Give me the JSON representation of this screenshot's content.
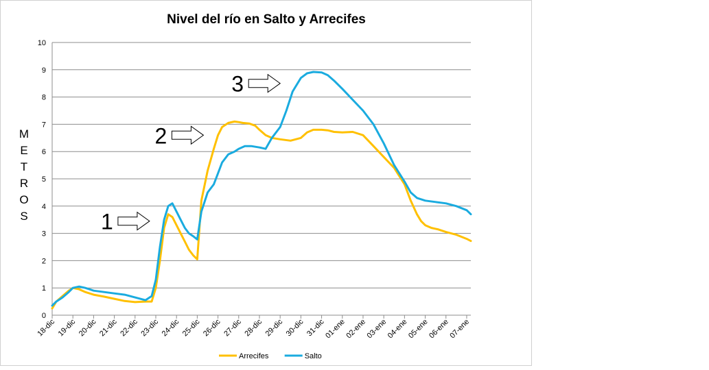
{
  "chart_data": {
    "type": "line",
    "title": "Nivel del río en Salto y Arrecifes",
    "ylabel": "METROS",
    "xlabel": "",
    "ylim": [
      0,
      10
    ],
    "yticks": [
      0,
      1,
      2,
      3,
      4,
      5,
      6,
      7,
      8,
      9,
      10
    ],
    "xlim": [
      0,
      20.2
    ],
    "categories": [
      "18-dic",
      "19-dic",
      "20-dic",
      "21-dic",
      "22-dic",
      "23-dic",
      "24-dic",
      "25-dic",
      "26-dic",
      "27-dic",
      "28-dic",
      "29-dic",
      "30-dic",
      "31-dic",
      "01-ene",
      "02-ene",
      "03-ene",
      "04-ene",
      "05-ene",
      "06-ene",
      "07-ene"
    ],
    "grid": true,
    "legend_position": "bottom",
    "series": [
      {
        "name": "Arrecifes",
        "color": "#ffc000",
        "x": [
          0,
          0.2,
          0.5,
          0.8,
          1.0,
          1.3,
          1.6,
          2.0,
          2.5,
          3.0,
          3.5,
          4.0,
          4.5,
          4.8,
          5.0,
          5.2,
          5.4,
          5.6,
          5.8,
          6.0,
          6.2,
          6.4,
          6.6,
          6.8,
          7.0,
          7.2,
          7.5,
          7.8,
          8.0,
          8.2,
          8.5,
          8.8,
          9.0,
          9.2,
          9.5,
          9.8,
          10.0,
          10.3,
          10.6,
          11.0,
          11.5,
          12.0,
          12.3,
          12.6,
          13.0,
          13.3,
          13.6,
          14.0,
          14.5,
          15.0,
          15.5,
          16.0,
          16.5,
          17.0,
          17.3,
          17.6,
          17.8,
          18.0,
          18.3,
          18.6,
          19.0,
          19.5,
          20.0,
          20.2
        ],
        "y": [
          0.25,
          0.5,
          0.7,
          0.9,
          1.0,
          0.95,
          0.85,
          0.75,
          0.68,
          0.6,
          0.52,
          0.48,
          0.5,
          0.5,
          1.0,
          2.0,
          3.2,
          3.7,
          3.6,
          3.3,
          3.0,
          2.7,
          2.4,
          2.2,
          2.05,
          4.2,
          5.3,
          6.1,
          6.6,
          6.9,
          7.05,
          7.1,
          7.08,
          7.05,
          7.03,
          6.95,
          6.8,
          6.6,
          6.5,
          6.45,
          6.4,
          6.5,
          6.7,
          6.8,
          6.8,
          6.78,
          6.72,
          6.7,
          6.72,
          6.6,
          6.2,
          5.8,
          5.4,
          4.8,
          4.2,
          3.7,
          3.45,
          3.3,
          3.2,
          3.15,
          3.05,
          2.95,
          2.8,
          2.72
        ]
      },
      {
        "name": "Salto",
        "color": "#1aabdf",
        "x": [
          0,
          0.2,
          0.5,
          0.8,
          1.0,
          1.3,
          1.6,
          2.0,
          2.5,
          3.0,
          3.5,
          4.0,
          4.5,
          4.8,
          5.0,
          5.2,
          5.4,
          5.6,
          5.8,
          6.0,
          6.2,
          6.4,
          6.6,
          6.8,
          7.0,
          7.2,
          7.5,
          7.8,
          8.0,
          8.2,
          8.5,
          8.8,
          9.0,
          9.3,
          9.6,
          10.0,
          10.3,
          10.6,
          11.0,
          11.3,
          11.6,
          12.0,
          12.3,
          12.6,
          13.0,
          13.3,
          13.6,
          14.0,
          14.5,
          15.0,
          15.5,
          16.0,
          16.5,
          17.0,
          17.3,
          17.6,
          18.0,
          18.5,
          19.0,
          19.5,
          20.0,
          20.2
        ],
        "y": [
          0.35,
          0.5,
          0.65,
          0.85,
          1.0,
          1.05,
          1.0,
          0.9,
          0.85,
          0.8,
          0.75,
          0.65,
          0.55,
          0.7,
          1.3,
          2.5,
          3.5,
          4.0,
          4.1,
          3.8,
          3.5,
          3.2,
          3.0,
          2.9,
          2.78,
          3.8,
          4.5,
          4.8,
          5.2,
          5.6,
          5.9,
          6.0,
          6.1,
          6.2,
          6.2,
          6.15,
          6.1,
          6.5,
          6.9,
          7.5,
          8.2,
          8.7,
          8.87,
          8.92,
          8.9,
          8.8,
          8.6,
          8.3,
          7.9,
          7.5,
          7.0,
          6.3,
          5.5,
          4.9,
          4.5,
          4.3,
          4.2,
          4.15,
          4.1,
          4.0,
          3.85,
          3.7
        ]
      }
    ]
  },
  "annotations": [
    {
      "label": "1",
      "x": 4.7,
      "y": 3.45
    },
    {
      "label": "2",
      "x": 7.3,
      "y": 6.6
    },
    {
      "label": "3",
      "x": 11.0,
      "y": 8.5
    }
  ]
}
